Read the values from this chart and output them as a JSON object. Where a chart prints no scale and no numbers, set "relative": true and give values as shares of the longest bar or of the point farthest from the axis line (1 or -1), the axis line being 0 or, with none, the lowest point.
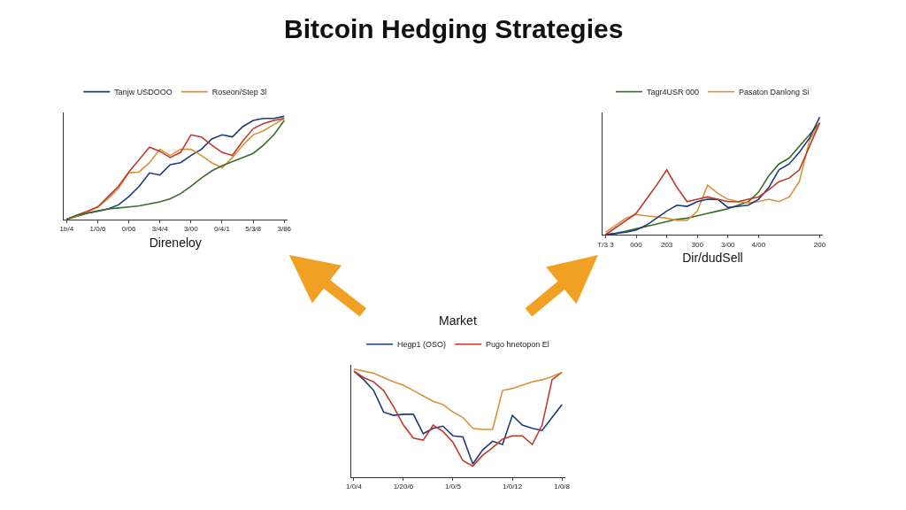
{
  "chart_data": [
    {
      "type": "line",
      "relative": true,
      "legend": "top",
      "tick_labels": "x",
      "xlabel": "Direneloy",
      "title": "Bitcoin Hedging Strategies",
      "categories": [
        "1b/4",
        null,
        null,
        "1/0/6",
        null,
        null,
        "0/06",
        null,
        null,
        "3/4/4",
        null,
        null,
        "3/00",
        null,
        null,
        "0/4/1",
        null,
        null,
        "5/3/8",
        null,
        null,
        "3/86"
      ],
      "series": [
        {
          "name": "Tanjw USDOOO",
          "color": "#1f3a7a",
          "values": [
            0,
            0.03,
            0.06,
            0.08,
            0.1,
            0.14,
            0.22,
            0.32,
            0.45,
            0.43,
            0.53,
            0.55,
            0.62,
            0.68,
            0.78,
            0.82,
            0.8,
            0.9,
            0.96,
            0.98,
            0.98,
            1.0
          ]
        },
        {
          "name": "Roseon/Step 3l",
          "color": "#d9923a",
          "values": [
            0,
            0.03,
            0.07,
            0.12,
            0.2,
            0.3,
            0.45,
            0.46,
            0.55,
            0.68,
            0.62,
            0.68,
            0.68,
            0.62,
            0.55,
            0.5,
            0.6,
            0.72,
            0.82,
            0.86,
            0.92,
            0.98
          ]
        },
        {
          "color": "#c0392b",
          "values": [
            0,
            0.04,
            0.08,
            0.12,
            0.22,
            0.32,
            0.46,
            0.58,
            0.7,
            0.66,
            0.6,
            0.65,
            0.82,
            0.8,
            0.72,
            0.65,
            0.62,
            0.76,
            0.88,
            0.93,
            0.96,
            0.98
          ]
        },
        {
          "color": "#3a6b2a",
          "values": [
            0,
            0.04,
            0.06,
            0.08,
            0.1,
            0.11,
            0.12,
            0.13,
            0.15,
            0.17,
            0.2,
            0.25,
            0.32,
            0.4,
            0.47,
            0.52,
            0.56,
            0.6,
            0.64,
            0.72,
            0.82,
            0.96
          ]
        }
      ]
    },
    {
      "type": "line",
      "relative": true,
      "legend": "top",
      "tick_labels": "x",
      "xlabel": "Dir/dudSell",
      "categories": [
        "T/3 3",
        null,
        null,
        "000",
        null,
        null,
        "203",
        null,
        null,
        "300",
        null,
        null,
        "3/00",
        null,
        null,
        "4/00",
        null,
        null,
        null,
        null,
        null,
        "200"
      ],
      "series": [
        {
          "name": "Tagr4USR 000",
          "color": "#3a6b2a",
          "values": [
            0,
            0.01,
            0.03,
            0.05,
            0.07,
            0.09,
            0.11,
            0.13,
            0.14,
            0.16,
            0.18,
            0.2,
            0.22,
            0.25,
            0.28,
            0.36,
            0.5,
            0.6,
            0.65,
            0.75,
            0.85,
            0.95
          ]
        },
        {
          "name": "Pasaton Danlong Si",
          "color": "#d9923a",
          "values": [
            0.02,
            0.08,
            0.14,
            0.17,
            0.16,
            0.15,
            0.14,
            0.12,
            0.12,
            0.2,
            0.42,
            0.35,
            0.3,
            0.28,
            0.27,
            0.28,
            0.3,
            0.28,
            0.32,
            0.45,
            0.8,
            0.95
          ]
        },
        {
          "color": "#1f3a7a",
          "values": [
            0,
            0.01,
            0.02,
            0.04,
            0.08,
            0.14,
            0.2,
            0.25,
            0.24,
            0.28,
            0.3,
            0.3,
            0.23,
            0.24,
            0.25,
            0.3,
            0.4,
            0.55,
            0.6,
            0.7,
            0.82,
            1.0
          ]
        },
        {
          "color": "#c0392b",
          "values": [
            0,
            0.06,
            0.12,
            0.18,
            0.3,
            0.42,
            0.55,
            0.4,
            0.28,
            0.3,
            0.32,
            0.3,
            0.28,
            0.28,
            0.3,
            0.32,
            0.38,
            0.45,
            0.48,
            0.55,
            0.75,
            0.95
          ]
        }
      ]
    },
    {
      "type": "line",
      "relative": true,
      "legend": "top",
      "tick_labels": "x",
      "title": "Market",
      "categories": [
        "1/0/4",
        null,
        null,
        null,
        null,
        "1/20/6",
        null,
        null,
        null,
        null,
        "1/0/5",
        null,
        null,
        null,
        null,
        null,
        "1/0/12",
        null,
        null,
        null,
        null,
        "1/0/8"
      ],
      "series": [
        {
          "name": "Hegp1 (OSO)",
          "color": "#1f3a7a",
          "values": [
            0.98,
            0.9,
            0.8,
            0.6,
            0.57,
            0.58,
            0.58,
            0.4,
            0.45,
            0.47,
            0.38,
            0.37,
            0.12,
            0.25,
            0.33,
            0.3,
            0.57,
            0.48,
            0.45,
            0.43,
            0.55,
            0.67
          ]
        },
        {
          "name": "Pugo hnetopon El",
          "color": "#c0392b",
          "values": [
            0.98,
            0.92,
            0.88,
            0.8,
            0.65,
            0.48,
            0.36,
            0.34,
            0.48,
            0.42,
            0.32,
            0.15,
            0.1,
            0.2,
            0.27,
            0.35,
            0.38,
            0.38,
            0.3,
            0.48,
            0.9,
            0.97
          ]
        },
        {
          "color": "#d9923a",
          "values": [
            1.0,
            0.98,
            0.96,
            0.92,
            0.88,
            0.85,
            0.8,
            0.75,
            0.7,
            0.67,
            0.6,
            0.55,
            0.45,
            0.44,
            0.44,
            0.8,
            0.82,
            0.85,
            0.88,
            0.9,
            0.93,
            0.97
          ]
        }
      ]
    }
  ]
}
